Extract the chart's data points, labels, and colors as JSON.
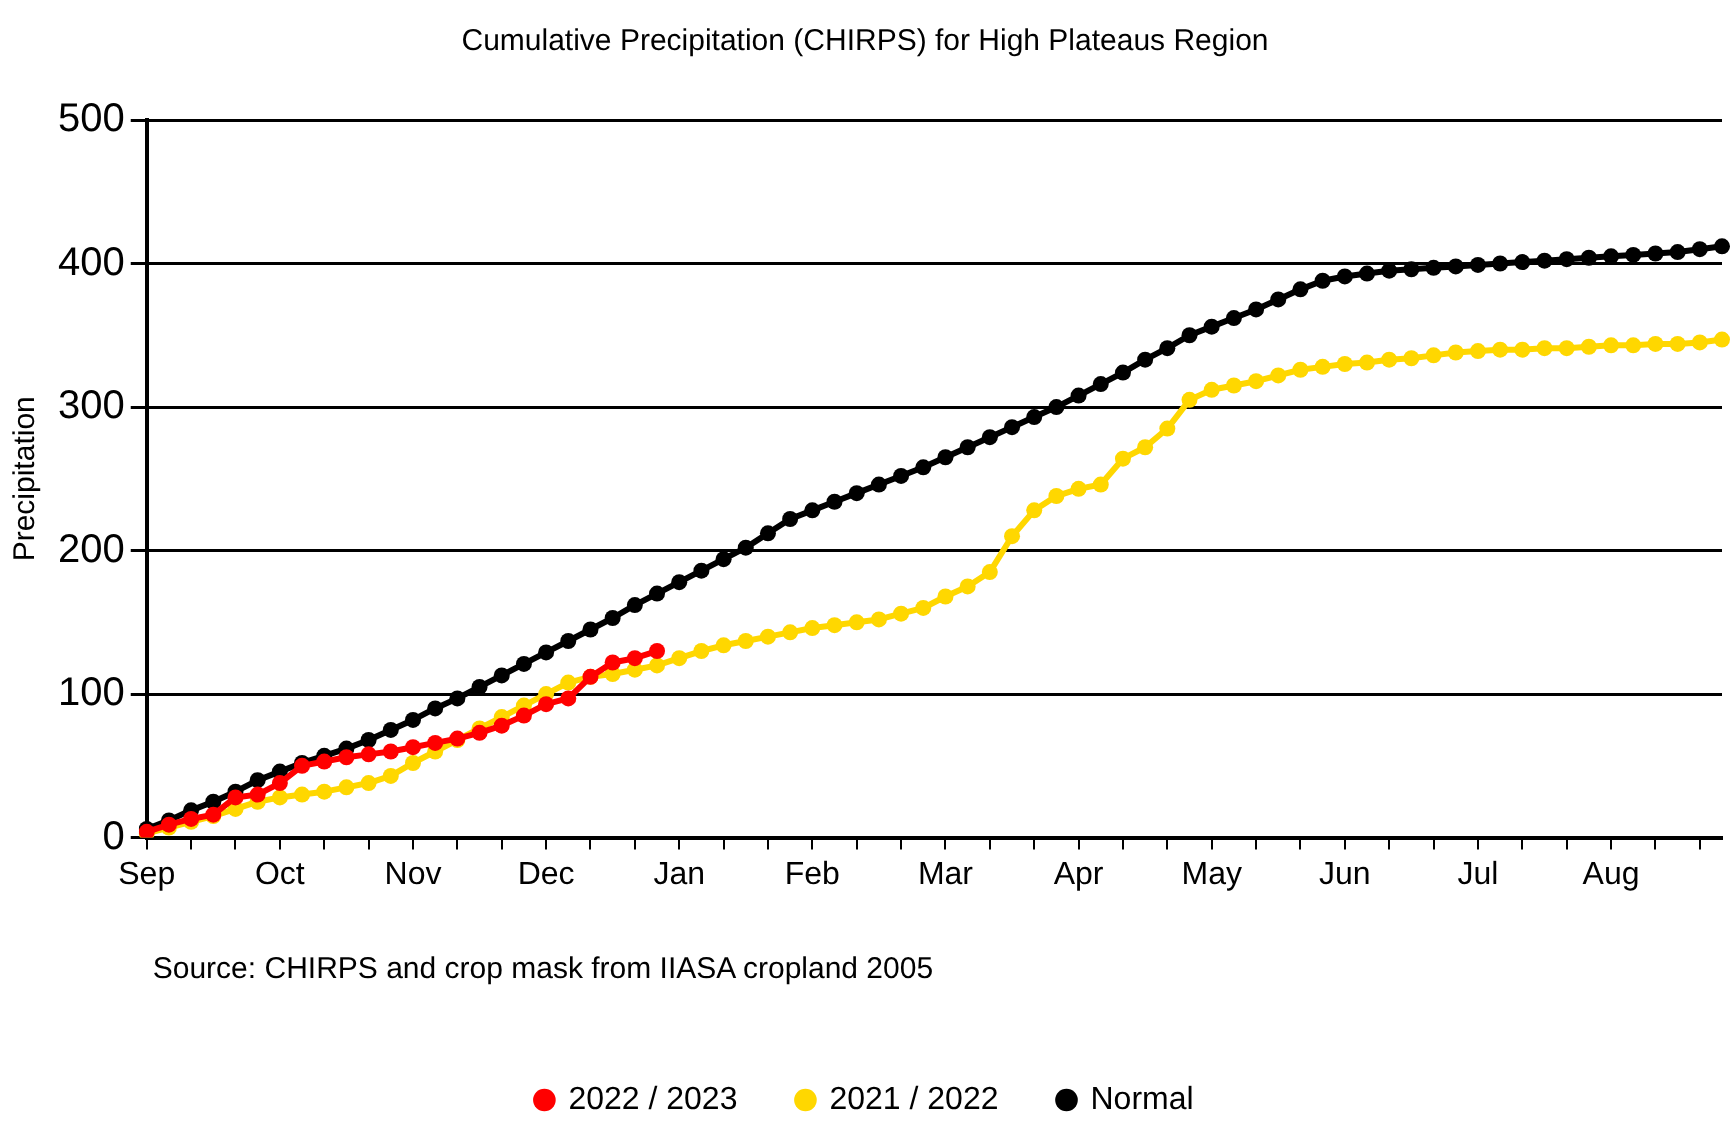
{
  "chart_data": {
    "type": "line",
    "title": "Cumulative Precipitation (CHIRPS) for High Plateaus Region",
    "ylabel": "Precipitation",
    "annotations": [
      "Source: CHIRPS and crop mask from IIASA cropland 2005"
    ],
    "categories": [
      "Sep",
      null,
      null,
      null,
      null,
      null,
      "Oct",
      null,
      null,
      null,
      null,
      null,
      "Nov",
      null,
      null,
      null,
      null,
      null,
      "Dec",
      null,
      null,
      null,
      null,
      null,
      "Jan",
      null,
      null,
      null,
      null,
      null,
      "Feb",
      null,
      null,
      null,
      null,
      null,
      "Mar",
      null,
      null,
      null,
      null,
      null,
      "Apr",
      null,
      null,
      null,
      null,
      null,
      "May",
      null,
      null,
      null,
      null,
      null,
      "Jun",
      null,
      null,
      null,
      null,
      null,
      "Jul",
      null,
      null,
      null,
      null,
      null,
      "Aug",
      null,
      null,
      null,
      null,
      null
    ],
    "ylim": [
      0,
      500
    ],
    "yticks": [
      0,
      100,
      200,
      300,
      400,
      500
    ],
    "grid": "y",
    "legend": "bottom",
    "marker": "circle",
    "line_style": "solid",
    "series": [
      {
        "name": "2022 / 2023",
        "color": "#ff0000",
        "values": [
          4,
          9,
          13,
          16,
          28,
          30,
          38,
          50,
          53,
          56,
          58,
          60,
          63,
          66,
          69,
          73,
          78,
          85,
          93,
          97,
          112,
          122,
          125,
          130,
          null,
          null,
          null,
          null,
          null,
          null,
          null,
          null,
          null,
          null,
          null,
          null,
          null,
          null,
          null,
          null,
          null,
          null,
          null,
          null,
          null,
          null,
          null,
          null,
          null,
          null,
          null,
          null,
          null,
          null,
          null,
          null,
          null,
          null,
          null,
          null,
          null,
          null,
          null,
          null,
          null,
          null,
          null,
          null,
          null,
          null,
          null,
          null
        ]
      },
      {
        "name": "2021 / 2022",
        "color": "#ffd700",
        "values": [
          3,
          7,
          11,
          15,
          20,
          25,
          28,
          30,
          32,
          35,
          38,
          43,
          52,
          60,
          68,
          76,
          84,
          92,
          100,
          108,
          112,
          114,
          117,
          120,
          125,
          130,
          134,
          137,
          140,
          143,
          146,
          148,
          150,
          152,
          156,
          160,
          168,
          175,
          185,
          210,
          228,
          238,
          243,
          246,
          264,
          272,
          285,
          305,
          312,
          315,
          318,
          322,
          326,
          328,
          330,
          331,
          333,
          334,
          336,
          338,
          339,
          340,
          340,
          341,
          341,
          342,
          343,
          343,
          344,
          344,
          345,
          347
        ]
      },
      {
        "name": "Normal",
        "color": "#000000",
        "values": [
          6,
          12,
          19,
          25,
          32,
          40,
          46,
          52,
          57,
          62,
          68,
          75,
          82,
          90,
          97,
          105,
          113,
          121,
          129,
          137,
          145,
          153,
          162,
          170,
          178,
          186,
          194,
          202,
          212,
          222,
          228,
          234,
          240,
          246,
          252,
          258,
          265,
          272,
          279,
          286,
          293,
          300,
          308,
          316,
          324,
          333,
          341,
          350,
          356,
          362,
          368,
          375,
          382,
          388,
          391,
          393,
          395,
          396,
          397,
          398,
          399,
          400,
          401,
          402,
          403,
          404,
          405,
          406,
          407,
          408,
          410,
          412
        ]
      }
    ]
  }
}
